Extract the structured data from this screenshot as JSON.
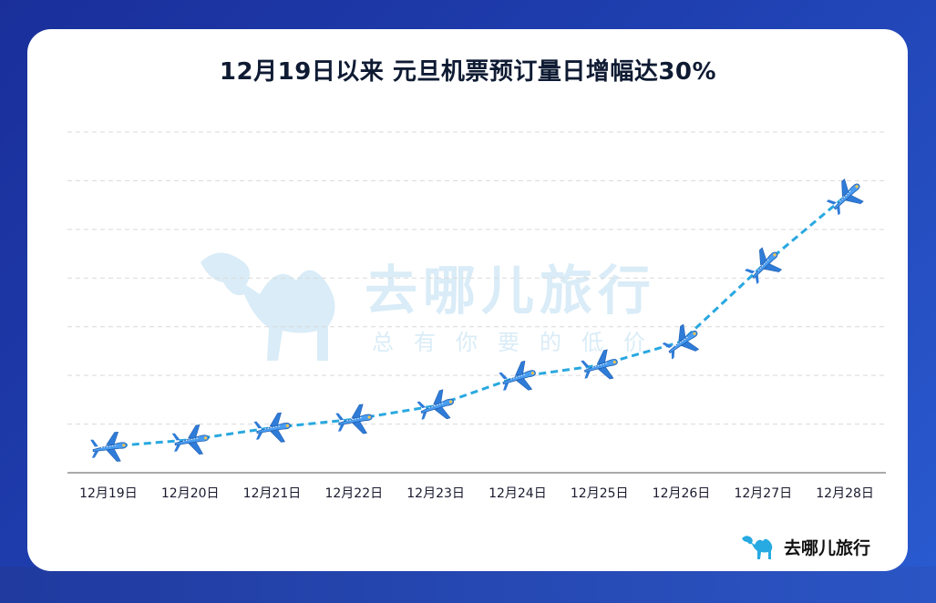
{
  "title": "12月19日以来 元旦机票预订量日增幅达30%",
  "watermark": {
    "brand": "去哪儿旅行",
    "slogan": "总有你要的低价"
  },
  "brand_logo": {
    "text": "去哪儿旅行",
    "icon": "camel-icon"
  },
  "colors": {
    "line": "#29a8e0",
    "plane": "#3b8fe6",
    "grid": "#d9d9d9",
    "title": "#0f1b33"
  },
  "chart_data": {
    "type": "line",
    "title": "12月19日以来 元旦机票预订量日增幅达30%",
    "categories": [
      "12月19日",
      "12月20日",
      "12月21日",
      "12月22日",
      "12月23日",
      "12月24日",
      "12月25日",
      "12月26日",
      "12月27日",
      "12月28日"
    ],
    "series": [
      {
        "values": [
          1,
          1.13,
          1.36,
          1.52,
          1.78,
          2.33,
          2.55,
          3.0,
          4.46,
          5.77
        ],
        "marker": "airplane-icon"
      }
    ],
    "ylim": [
      0.5,
      7
    ],
    "y_ticks_labeled": false,
    "grid": true,
    "legend": "none"
  }
}
